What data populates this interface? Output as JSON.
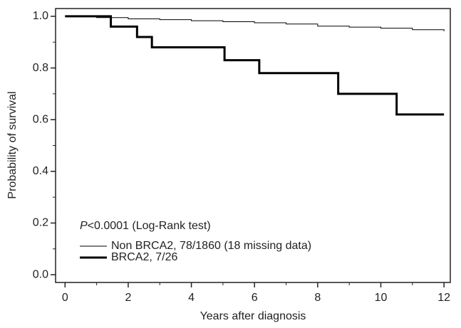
{
  "chart_data": {
    "type": "step",
    "xlabel": "Years after diagnosis",
    "ylabel": "Probability of survival",
    "xlim": [
      -0.3,
      12.2
    ],
    "ylim": [
      -0.03,
      1.03
    ],
    "xticks": [
      0,
      2,
      4,
      6,
      8,
      10,
      12
    ],
    "xminorticks": [
      1,
      3,
      5,
      7,
      9,
      11
    ],
    "yticks": [
      {
        "value": 0,
        "label": "0.0"
      },
      {
        "value": 0.2,
        "label": "0.2"
      },
      {
        "value": 0.4,
        "label": "0.4"
      },
      {
        "value": 0.6,
        "label": "0.6"
      },
      {
        "value": 0.8,
        "label": "0.8"
      },
      {
        "value": 1,
        "label": "1.0"
      }
    ],
    "yminorticks": [
      0.1,
      0.3,
      0.5,
      0.7,
      0.9
    ],
    "annotation": {
      "italic": "P",
      "text": "<0.0001 (Log-Rank test)"
    },
    "legend": "lower left",
    "series": [
      {
        "name": "Non BRCA2, 78/1860 (18 missing data)",
        "color": "#000000",
        "line_width": 1,
        "x": [
          0,
          1,
          2,
          3,
          4,
          5,
          6,
          7,
          8,
          9,
          10,
          11,
          12
        ],
        "values": [
          1.0,
          0.995,
          0.99,
          0.987,
          0.983,
          0.979,
          0.975,
          0.97,
          0.962,
          0.958,
          0.954,
          0.948,
          0.942
        ]
      },
      {
        "name": "BRCA2, 7/26",
        "color": "#000000",
        "line_width": 3,
        "x": [
          0,
          1.45,
          2.28,
          2.75,
          5.05,
          6.15,
          8.65,
          10.5,
          12
        ],
        "values": [
          1.0,
          0.96,
          0.92,
          0.88,
          0.83,
          0.78,
          0.7,
          0.62,
          0.62
        ]
      }
    ]
  }
}
